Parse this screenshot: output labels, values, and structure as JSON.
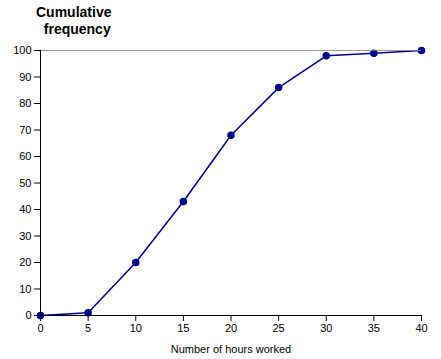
{
  "chart_data": {
    "type": "line",
    "title": "Cumulative",
    "subtitle": "  frequency",
    "x": [
      0,
      5,
      10,
      15,
      20,
      25,
      30,
      35,
      40
    ],
    "values": [
      0,
      1,
      20,
      43,
      68,
      86,
      98,
      99,
      100
    ],
    "color": "#00008B",
    "marker": "circle",
    "xlabel": "Number of hours worked",
    "xlim": [
      0,
      40
    ],
    "ylim": [
      0,
      100
    ],
    "xticks": [
      0,
      5,
      10,
      15,
      20,
      25,
      30,
      35,
      40
    ],
    "yticks": [
      0,
      10,
      20,
      30,
      40,
      50,
      60,
      70,
      80,
      90,
      100
    ],
    "grid": false
  }
}
